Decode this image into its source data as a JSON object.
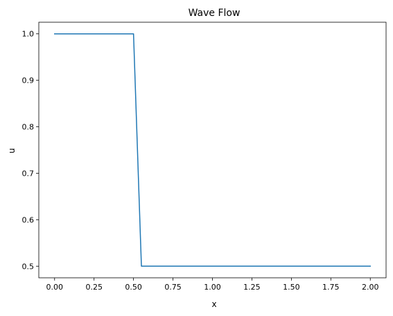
{
  "chart_data": {
    "type": "line",
    "title": "Wave Flow",
    "xlabel": "x",
    "ylabel": "u",
    "xlim": [
      -0.1,
      2.1
    ],
    "ylim": [
      0.475,
      1.025
    ],
    "grid": false,
    "x_ticks": [
      0.0,
      0.25,
      0.5,
      0.75,
      1.0,
      1.25,
      1.5,
      1.75,
      2.0
    ],
    "x_tick_labels": [
      "0.00",
      "0.25",
      "0.50",
      "0.75",
      "1.00",
      "1.25",
      "1.50",
      "1.75",
      "2.00"
    ],
    "y_ticks": [
      0.5,
      0.6,
      0.7,
      0.8,
      0.9,
      1.0
    ],
    "y_tick_labels": [
      "0.5",
      "0.6",
      "0.7",
      "0.8",
      "0.9",
      "1.0"
    ],
    "series": [
      {
        "color": "#1f77b4",
        "x": [
          0.0,
          0.5,
          0.55,
          2.0
        ],
        "y": [
          1.0,
          1.0,
          0.5,
          0.5
        ]
      }
    ]
  }
}
